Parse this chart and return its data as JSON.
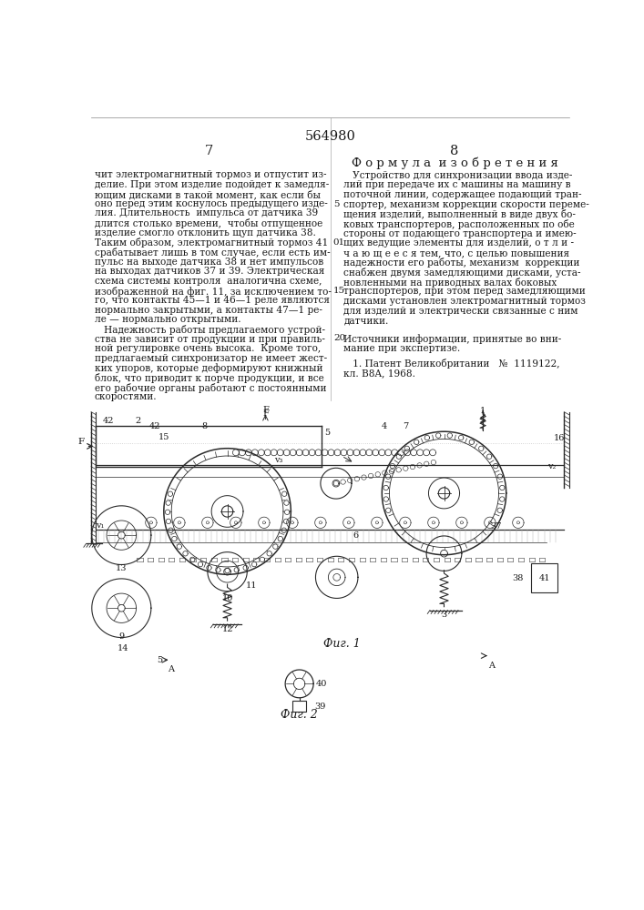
{
  "page_number": "564980",
  "left_col_number": "7",
  "right_col_number": "8",
  "right_col_header": "Формула изобретения",
  "left_text_lines": [
    "чит электромагнитный тормоз и отпустит из-",
    "делие. При этом изделие подойдет к замедля-",
    "ющим дисками в такой момент, как если бы",
    "оно перед этим коснулось предыдущего изде-",
    "лия. Длительность  импульса от датчика 39",
    "длится столько времени,  чтобы отпущенное",
    "изделие смогло отклонить щуп датчика 38.",
    "Таким образом, электромагнитный тормоз 41",
    "срабатывает лишь в том случае, если есть им-",
    "пульс на выходе датчика 38 и нет импульсов",
    "на выходах датчиков 37 и 39. Электрическая",
    "схема системы контроля  аналогична схеме,",
    "изображенной на фиг. 11, за исключением то-",
    "го, что контакты 45—1 и 46—1 реле являются",
    "нормально закрытыми, а контакты 47—1 ре-",
    "ле — нормально открытыми.",
    "   Надежность работы предлагаемого устрой-",
    "ства не зависит от продукции и при правиль-",
    "ной регулировке очень высока.  Кроме того,",
    "предлагаемый синхронизатор не имеет жест-",
    "ких упоров, которые деформируют книжный",
    "блок, что приводит к порче продукции, и все",
    "его рабочие органы работают с постоянными",
    "скоростями."
  ],
  "right_text_lines": [
    "   Устройство для синхронизации ввода изде-",
    "лий при передаче их с машины на машину в",
    "поточной линии, содержащее подающий тран-",
    "спортер, механизм коррекции скорости переме-",
    "щения изделий, выполненный в виде двух бо-",
    "ковых транспортеров, расположенных по обе",
    "стороны от подающего транспортера и имею-",
    "щих ведущие элементы для изделий, о т л и -",
    "ч а ю щ е е с я тем, что, с целью повышения",
    "надежности его работы, механизм  коррекции",
    "снабжен двумя замедляющими дисками, уста-",
    "новленными на приводных валах боковых",
    "транспортеров, при этом перед замедляющими",
    "дисками установлен электромагнитный тормоз",
    "для изделий и электрически связанные с ним",
    "датчики."
  ],
  "right_line_numbers": {
    "3": "5",
    "7": "01",
    "12": "15"
  },
  "sources_line_number": "20",
  "sources_header": "Источники информации, принятые во вни-",
  "sources_text": "мание при экспертизе.",
  "reference_line1": "   1. Патент Великобритании   №  1119122,",
  "reference_line2": "кл. B8A, 1968.",
  "bg_color": "#ffffff",
  "text_color": "#1a1a1a",
  "line_color": "#2a2a2a"
}
